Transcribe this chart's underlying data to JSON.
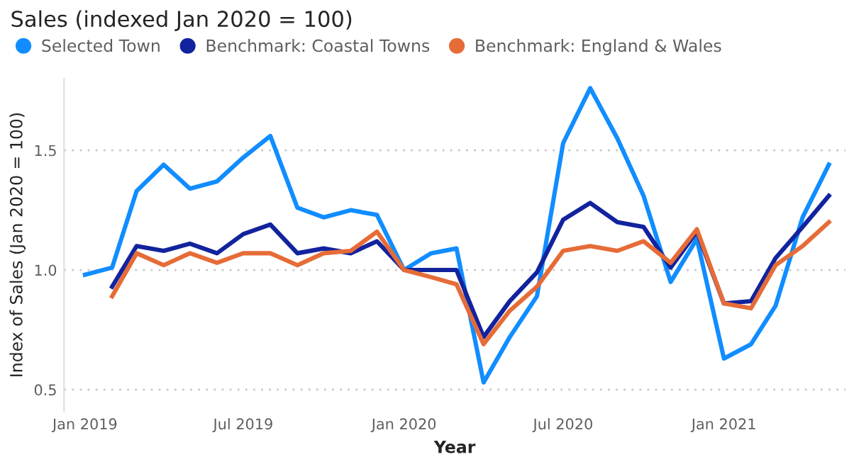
{
  "chart_data": {
    "type": "line",
    "title": "Sales (indexed Jan 2020 = 100)",
    "xlabel": "Year",
    "ylabel": "Index of Sales (Jan 2020 = 100)",
    "x": [
      "2019-01",
      "2019-02",
      "2019-03",
      "2019-04",
      "2019-05",
      "2019-06",
      "2019-07",
      "2019-08",
      "2019-09",
      "2019-10",
      "2019-11",
      "2019-12",
      "2020-01",
      "2020-02",
      "2020-03",
      "2020-04",
      "2020-05",
      "2020-06",
      "2020-07",
      "2020-08",
      "2020-09",
      "2020-10",
      "2020-11",
      "2020-12",
      "2021-01",
      "2021-02",
      "2021-03",
      "2021-04",
      "2021-05"
    ],
    "series": [
      {
        "name": "Selected Town",
        "color": "#118dff",
        "values": [
          0.98,
          1.01,
          1.33,
          1.44,
          1.34,
          1.37,
          1.47,
          1.56,
          1.26,
          1.22,
          1.25,
          1.23,
          1.0,
          1.07,
          1.09,
          0.53,
          0.72,
          0.89,
          1.53,
          1.76,
          1.55,
          1.31,
          0.95,
          1.13,
          0.63,
          0.69,
          0.85,
          1.22,
          1.44
        ]
      },
      {
        "name": "Benchmark: Coastal Towns",
        "color": "#12239e",
        "values": [
          null,
          0.93,
          1.1,
          1.08,
          1.11,
          1.07,
          1.15,
          1.19,
          1.07,
          1.09,
          1.07,
          1.12,
          1.0,
          1.0,
          1.0,
          0.72,
          0.87,
          0.99,
          1.21,
          1.28,
          1.2,
          1.18,
          1.01,
          1.16,
          0.86,
          0.87,
          1.05,
          1.18,
          1.31
        ]
      },
      {
        "name": "Benchmark: England & Wales",
        "color": "#e66c37",
        "values": [
          null,
          0.89,
          1.07,
          1.02,
          1.07,
          1.03,
          1.07,
          1.07,
          1.02,
          1.07,
          1.08,
          1.16,
          1.0,
          0.97,
          0.94,
          0.69,
          0.83,
          0.93,
          1.08,
          1.1,
          1.08,
          1.12,
          1.03,
          1.17,
          0.86,
          0.84,
          1.02,
          1.1,
          1.2
        ]
      }
    ],
    "xlim": [
      "2018-12-08",
      "2021-05-20"
    ],
    "xticks": [
      {
        "value": "2019-01",
        "label": "Jan 2019"
      },
      {
        "value": "2019-07",
        "label": "Jul 2019"
      },
      {
        "value": "2020-01",
        "label": "Jan 2020"
      },
      {
        "value": "2020-07",
        "label": "Jul 2020"
      },
      {
        "value": "2021-01",
        "label": "Jan 2021"
      }
    ],
    "ylim": [
      0.41,
      1.8
    ],
    "yticks": [
      {
        "value": 0.5,
        "label": "0.5"
      },
      {
        "value": 1.0,
        "label": "1.0"
      },
      {
        "value": 1.5,
        "label": "1.5"
      }
    ],
    "grid": "y",
    "legend": "top left",
    "marker": "none",
    "line_style": "solid"
  }
}
